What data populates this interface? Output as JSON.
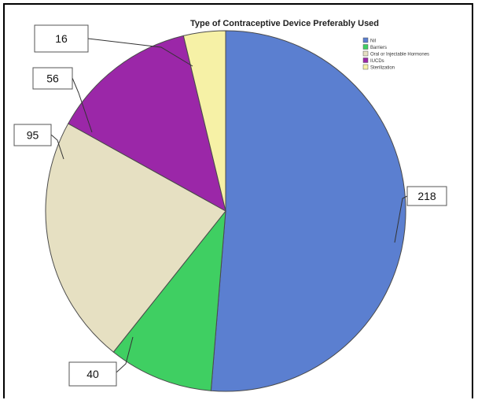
{
  "chart_data": {
    "type": "pie",
    "title": "Type of Contraceptive Device Preferably Used",
    "categories": [
      "Nil",
      "Barriers",
      "Oral or Injectable Hormones",
      "IUCDs",
      "Sterilization"
    ],
    "values": [
      218,
      40,
      95,
      56,
      16
    ],
    "colors": [
      "#5b7fd0",
      "#3fcf62",
      "#e6e0c2",
      "#9b27a8",
      "#f6f1a6"
    ],
    "legend_placement": "top-right",
    "data_labels": [
      "218",
      "40",
      "95",
      "56",
      "16"
    ]
  }
}
